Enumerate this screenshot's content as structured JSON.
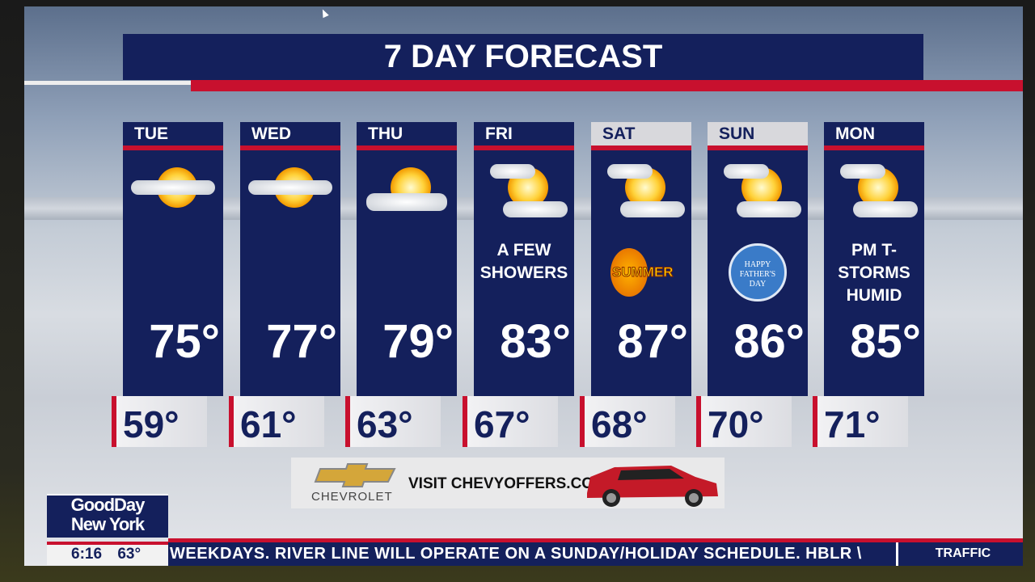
{
  "title": "7 DAY FORECAST",
  "days": [
    {
      "day": "TUE",
      "hi": "75°",
      "lo": "59°",
      "icon": "partly-cloudy-sun",
      "condition": ""
    },
    {
      "day": "WED",
      "hi": "77°",
      "lo": "61°",
      "icon": "partly-cloudy-sun",
      "condition": ""
    },
    {
      "day": "THU",
      "hi": "79°",
      "lo": "63°",
      "icon": "partly-cloudy-sun",
      "condition": ""
    },
    {
      "day": "FRI",
      "hi": "83°",
      "lo": "67°",
      "icon": "partly-cloudy-sun",
      "condition": "A FEW SHOWERS"
    },
    {
      "day": "SAT",
      "hi": "87°",
      "lo": "68°",
      "icon": "partly-cloudy-sun",
      "condition": "",
      "badge": "SUMMER"
    },
    {
      "day": "SUN",
      "hi": "86°",
      "lo": "70°",
      "icon": "partly-cloudy-sun",
      "condition": "",
      "badge": "HAPPY FATHER'S DAY"
    },
    {
      "day": "MON",
      "hi": "85°",
      "lo": "71°",
      "icon": "partly-cloudy-sun",
      "condition": "PM T-STORMS HUMID"
    }
  ],
  "ad": {
    "brand": "CHEVROLET",
    "text": "VISIT CHEVYOFFERS.COM"
  },
  "show": {
    "line1": "GoodDay",
    "line2": "New York",
    "time": "6:16",
    "temp": "63°"
  },
  "ticker": {
    "text": "WEEKDAYS. RIVER LINE WILL OPERATE ON A SUNDAY/HOLIDAY SCHEDULE. HBLR \\",
    "segment": "TRAFFIC"
  },
  "colors": {
    "navy": "#14205c",
    "red": "#c8102e"
  }
}
